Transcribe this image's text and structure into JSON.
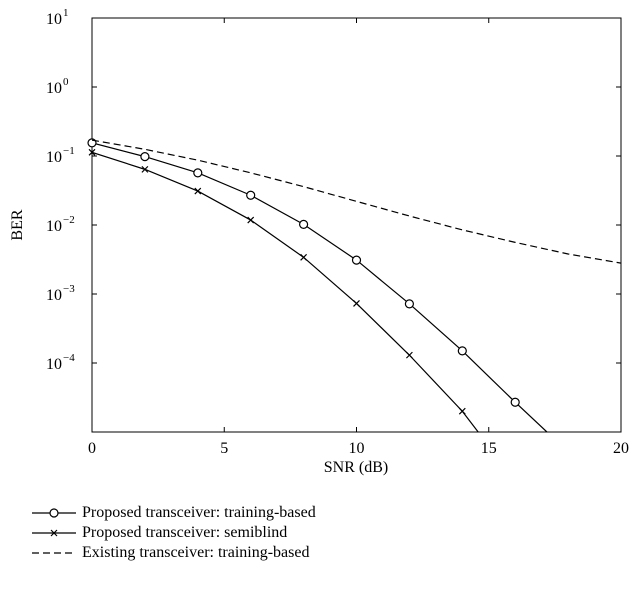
{
  "chart_data": {
    "type": "line",
    "title": "",
    "xlabel": "SNR (dB)",
    "ylabel": "BER",
    "xlim": [
      0,
      20
    ],
    "ylim": [
      1e-05,
      10
    ],
    "yscale": "log",
    "xticks": [
      0,
      5,
      10,
      15,
      20
    ],
    "xtick_labels": [
      "0",
      "5",
      "10",
      "15",
      "20"
    ],
    "yticks": [
      0.0001,
      0.001,
      0.01,
      0.1,
      1,
      10
    ],
    "ytick_labels": [
      {
        "base": "10",
        "exp": "−4"
      },
      {
        "base": "10",
        "exp": "−3"
      },
      {
        "base": "10",
        "exp": "−2"
      },
      {
        "base": "10",
        "exp": "−1"
      },
      {
        "base": "10",
        "exp": "0"
      },
      {
        "base": "10",
        "exp": "1"
      }
    ],
    "grid": false,
    "legend_position": "below",
    "series": [
      {
        "name": "Proposed transceiver: training-based",
        "marker": "circle",
        "linestyle": "solid",
        "x": [
          0,
          2,
          4,
          6,
          8,
          10,
          12,
          14,
          16,
          17.2
        ],
        "y": [
          0.155,
          0.098,
          0.057,
          0.027,
          0.0102,
          0.0031,
          0.00072,
          0.00015,
          2.7e-05,
          1e-05
        ],
        "marker_count": 9
      },
      {
        "name": "Proposed transceiver: semiblind",
        "marker": "x",
        "linestyle": "solid",
        "x": [
          0,
          2,
          4,
          6,
          8,
          10,
          12,
          14,
          14.6
        ],
        "y": [
          0.113,
          0.064,
          0.031,
          0.0118,
          0.0034,
          0.00073,
          0.00013,
          2e-05,
          1e-05
        ],
        "marker_count": 8
      },
      {
        "name": "Existing transceiver: training-based",
        "marker": "none",
        "linestyle": "dashed",
        "x": [
          0,
          2,
          4,
          6,
          8,
          10,
          12,
          14,
          16,
          18,
          20
        ],
        "y": [
          0.17,
          0.125,
          0.087,
          0.057,
          0.036,
          0.022,
          0.0135,
          0.0085,
          0.0056,
          0.0038,
          0.0028
        ]
      }
    ]
  }
}
